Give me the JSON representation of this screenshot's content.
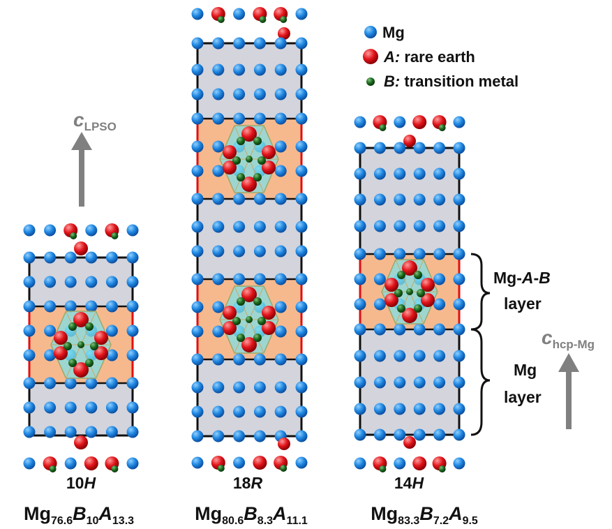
{
  "legend": {
    "items": [
      {
        "symbol": "Mg",
        "italic": "",
        "rest": "Mg",
        "color": "#1f86e0"
      },
      {
        "symbol": "A",
        "italic": "A:",
        "rest": " rare earth",
        "color": "#e0141a"
      },
      {
        "symbol": "B",
        "italic": "B:",
        "rest": " transition metal",
        "color": "#1c6b1e"
      }
    ]
  },
  "colors": {
    "mg": "#1f86e0",
    "rare_earth": "#e0141a",
    "transition_metal": "#1c6b1e",
    "mg_layer_fill": "#d4d4dc",
    "mga_b_layer_fill": "#f6b98e",
    "cluster_fill": "#7fe0e6",
    "cell_edge": "#111111",
    "cell_edge_red": "#e01010",
    "arrow": "#808080"
  },
  "axes": {
    "lpso": {
      "main": "c",
      "sub": "LPSO"
    },
    "hcp": {
      "main": "c",
      "sub": "hcp-Mg"
    }
  },
  "layer_labels": {
    "mgab_line1_a": "Mg-",
    "mgab_line1_b": "A",
    "mgab_line1_c": "-",
    "mgab_line1_d": "B",
    "mgab_line2": "layer",
    "mg_line1": "Mg",
    "mg_line2": "layer"
  },
  "structures": [
    {
      "name_num": "10",
      "name_sym": "H",
      "formula": [
        {
          "t": "Mg",
          "s": "76.6",
          "it": false
        },
        {
          "t": "B",
          "s": "10",
          "it": true
        },
        {
          "t": "A",
          "s": "13.3",
          "it": true
        }
      ]
    },
    {
      "name_num": "18",
      "name_sym": "R",
      "formula": [
        {
          "t": "Mg",
          "s": "80.6",
          "it": false
        },
        {
          "t": "B",
          "s": "8.3",
          "it": true
        },
        {
          "t": "A",
          "s": "11.1",
          "it": true
        }
      ]
    },
    {
      "name_num": "14",
      "name_sym": "H",
      "formula": [
        {
          "t": "Mg",
          "s": "83.3",
          "it": false
        },
        {
          "t": "B",
          "s": "7.2",
          "it": true
        },
        {
          "t": "A",
          "s": "9.5",
          "it": true
        }
      ]
    }
  ]
}
